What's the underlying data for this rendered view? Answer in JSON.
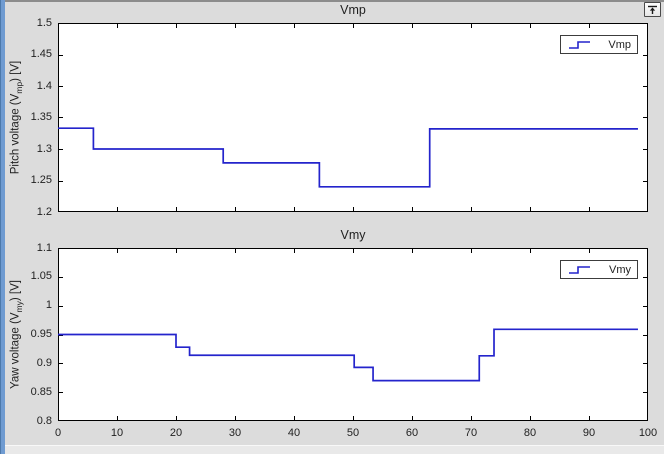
{
  "window": {
    "dock_button": {
      "icon": "dock-arrow-up-icon"
    },
    "colors": {
      "figure_bg": "#dcdcdc",
      "left_border": "#6f9bd1",
      "axes_bg": "#ffffff",
      "axis": "#000000",
      "text": "#1f1f1f",
      "line": "#2424cc"
    }
  },
  "chart_data": [
    {
      "type": "line",
      "style": "stairstep",
      "title": "Vmp",
      "ylabel": {
        "pre": "Pitch voltage (V",
        "sub": "mp",
        "post": ") [V]"
      },
      "legend": {
        "entries": [
          "Vmp"
        ],
        "position": "top-right"
      },
      "line_color": "#2424cc",
      "grid": false,
      "xlim": [
        0,
        100
      ],
      "ylim": [
        1.2,
        1.5
      ],
      "xtick_values": [
        0,
        10,
        20,
        30,
        40,
        50,
        60,
        70,
        80,
        90,
        100
      ],
      "xtick_labels": null,
      "ytick_values": [
        1.2,
        1.25,
        1.3,
        1.35,
        1.4,
        1.45,
        1.5
      ],
      "ytick_labels": [
        "1.2",
        "1.25",
        "1.3",
        "1.35",
        "1.4",
        "1.45",
        "1.5"
      ],
      "series": [
        {
          "name": "Vmp",
          "step_x": [
            0,
            6,
            28,
            44.3,
            63
          ],
          "step_values": [
            1.333,
            1.3,
            1.278,
            1.24,
            1.332
          ],
          "x_end": 98.3
        }
      ]
    },
    {
      "type": "line",
      "style": "stairstep",
      "title": "Vmy",
      "ylabel": {
        "pre": "Yaw voltage (V",
        "sub": "my",
        "post": ") [V]"
      },
      "legend": {
        "entries": [
          "Vmy"
        ],
        "position": "top-right"
      },
      "line_color": "#2424cc",
      "grid": false,
      "xlim": [
        0,
        100
      ],
      "ylim": [
        0.8,
        1.1
      ],
      "xtick_values": [
        0,
        10,
        20,
        30,
        40,
        50,
        60,
        70,
        80,
        90,
        100
      ],
      "xtick_labels": [
        "0",
        "10",
        "20",
        "30",
        "40",
        "50",
        "60",
        "70",
        "80",
        "90",
        "100"
      ],
      "ytick_values": [
        0.8,
        0.85,
        0.9,
        0.95,
        1.0,
        1.05,
        1.1
      ],
      "ytick_labels": [
        "0.8",
        "0.85",
        "0.9",
        "0.95",
        "1",
        "1.05",
        "1.1"
      ],
      "series": [
        {
          "name": "Vmy",
          "step_x": [
            0,
            20,
            22.3,
            50.2,
            53.4,
            71.4,
            73.9
          ],
          "step_values": [
            0.95,
            0.928,
            0.914,
            0.893,
            0.87,
            0.913,
            0.959
          ],
          "x_end": 98.3
        }
      ]
    }
  ]
}
